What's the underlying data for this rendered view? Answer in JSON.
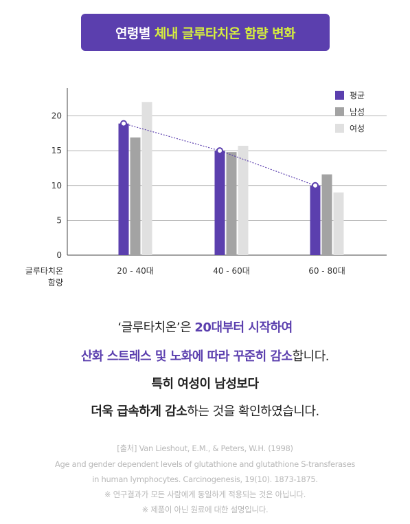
{
  "banner": {
    "title_prefix": "연령별",
    "title_highlight": "체내 글루타치온 함량 변화"
  },
  "colors": {
    "primary": "#5b3fae",
    "accent": "#d6ee3e",
    "avg": "#5b3fae",
    "male": "#a3a3a3",
    "female": "#e0e0e0"
  },
  "chart_data": {
    "type": "bar",
    "title": "",
    "ylabel": "글루타치온\n함량",
    "ylabel_lines": [
      "글루타치온",
      "함량"
    ],
    "xlabel": "",
    "categories": [
      "20 - 40대",
      "40 - 60대",
      "60 - 80대"
    ],
    "ylim": [
      0,
      24
    ],
    "yticks": [
      0,
      5,
      10,
      15,
      20
    ],
    "grid": true,
    "legend_position": "top-right",
    "series": [
      {
        "name": "평균",
        "values": [
          18.9,
          15.0,
          10.0
        ],
        "color": "#5b3fae"
      },
      {
        "name": "남성",
        "values": [
          16.9,
          14.8,
          11.6
        ],
        "color": "#a3a3a3"
      },
      {
        "name": "여성",
        "values": [
          22.0,
          15.7,
          9.0
        ],
        "color": "#e0e0e0"
      }
    ],
    "trend_line": {
      "series": "평균",
      "style": "dotted",
      "markers": true
    }
  },
  "caption": {
    "line1_a": "‘글루타치온’은 ",
    "line1_b": "20대부터 시작하여",
    "line2_a": "산화 스트레스 및 노화에 따라 꾸준히 감소",
    "line2_b": "합니다.",
    "line3": "특히 여성이 남성보다",
    "line4_a": "더욱 급속하게 감소",
    "line4_b": "하는 것을 확인하였습니다."
  },
  "reference": {
    "line1": "[출처] Van Lieshout, E.M., & Peters, W.H. (1998)",
    "line2": "Age and gender dependent levels of glutathione and glutathione S-transferases",
    "line3": "in human lymphocytes. Carcinogenesis, 19(10). 1873-1875.",
    "note1": "※ 연구결과가 모든 사람에게 동일하게 적용되는 것은 아닙니다.",
    "note2": "※ 제품이 아닌 원료에 대한 설명입니다."
  }
}
